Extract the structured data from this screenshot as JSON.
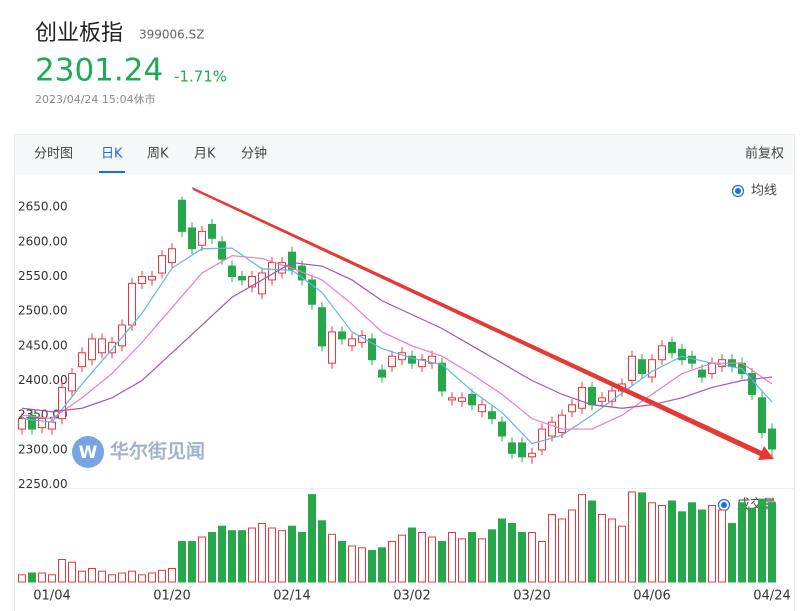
{
  "header": {
    "title": "创业板指",
    "code": "399006.SZ",
    "price": "2301.24",
    "change": "-1.71%",
    "time": "2023/04/24 15:04休市"
  },
  "tabs": [
    "分时图",
    "日K",
    "周K",
    "月K",
    "分钟"
  ],
  "adjust": "前复权",
  "watermark": "华尔街见闻",
  "chart_data": {
    "type": "candlestick",
    "categories": [
      null,
      null,
      null,
      "01/04",
      null,
      null,
      null,
      null,
      null,
      null,
      null,
      null,
      null,
      null,
      null,
      "01/20",
      null,
      null,
      null,
      null,
      null,
      null,
      null,
      null,
      null,
      null,
      null,
      "02/14",
      null,
      null,
      null,
      null,
      null,
      null,
      null,
      null,
      null,
      null,
      null,
      "03/02",
      null,
      null,
      null,
      null,
      null,
      null,
      null,
      null,
      null,
      null,
      null,
      "03/20",
      null,
      null,
      null,
      null,
      null,
      null,
      null,
      null,
      null,
      null,
      null,
      "04/06",
      null,
      null,
      null,
      null,
      null,
      null,
      null,
      null,
      null,
      null,
      null,
      "04/24"
    ],
    "open": [
      2330,
      2350,
      2332,
      2330,
      2345,
      2385,
      2420,
      2430,
      2440,
      2440,
      2450,
      2480,
      2540,
      2545,
      2555,
      2570,
      2660,
      2620,
      2595,
      2625,
      2600,
      2565,
      2550,
      2535,
      2525,
      2545,
      2555,
      2585,
      2565,
      2545,
      2505,
      2425,
      2470,
      2450,
      2455,
      2460,
      2415,
      2420,
      2430,
      2435,
      2420,
      2425,
      2425,
      2372,
      2370,
      2380,
      2355,
      2355,
      2340,
      2310,
      2310,
      2290,
      2300,
      2320,
      2325,
      2355,
      2360,
      2390,
      2370,
      2370,
      2385,
      2400,
      2430,
      2405,
      2430,
      2455,
      2445,
      2435,
      2415,
      2410,
      2420,
      2430,
      2425,
      2410,
      2375,
      2330
    ],
    "high": [
      2353,
      2358,
      2353,
      2348,
      2398,
      2418,
      2448,
      2468,
      2468,
      2463,
      2488,
      2548,
      2558,
      2558,
      2588,
      2598,
      2665,
      2628,
      2623,
      2633,
      2608,
      2573,
      2558,
      2558,
      2563,
      2578,
      2578,
      2593,
      2573,
      2553,
      2513,
      2478,
      2478,
      2468,
      2473,
      2468,
      2423,
      2443,
      2448,
      2443,
      2438,
      2443,
      2433,
      2383,
      2383,
      2388,
      2373,
      2363,
      2348,
      2318,
      2318,
      2303,
      2338,
      2348,
      2358,
      2373,
      2398,
      2398,
      2383,
      2393,
      2403,
      2443,
      2438,
      2438,
      2458,
      2463,
      2453,
      2443,
      2423,
      2433,
      2438,
      2438,
      2433,
      2418,
      2383,
      2338
    ],
    "low": [
      2322,
      2322,
      2324,
      2322,
      2337,
      2377,
      2412,
      2422,
      2432,
      2432,
      2442,
      2472,
      2532,
      2537,
      2547,
      2562,
      2607,
      2582,
      2587,
      2597,
      2567,
      2542,
      2537,
      2527,
      2517,
      2537,
      2547,
      2552,
      2537,
      2502,
      2442,
      2417,
      2452,
      2442,
      2447,
      2422,
      2397,
      2412,
      2422,
      2417,
      2412,
      2417,
      2377,
      2364,
      2362,
      2357,
      2347,
      2337,
      2312,
      2287,
      2282,
      2280,
      2292,
      2312,
      2317,
      2347,
      2352,
      2357,
      2362,
      2362,
      2377,
      2392,
      2402,
      2397,
      2422,
      2432,
      2422,
      2417,
      2397,
      2402,
      2412,
      2412,
      2402,
      2372,
      2317,
      2290
    ],
    "close": [
      2345,
      2330,
      2345,
      2340,
      2390,
      2410,
      2440,
      2460,
      2460,
      2455,
      2480,
      2540,
      2550,
      2550,
      2580,
      2590,
      2615,
      2590,
      2615,
      2605,
      2575,
      2550,
      2545,
      2550,
      2555,
      2570,
      2570,
      2560,
      2545,
      2510,
      2450,
      2470,
      2460,
      2460,
      2465,
      2430,
      2405,
      2435,
      2440,
      2425,
      2430,
      2435,
      2385,
      2375,
      2375,
      2365,
      2365,
      2345,
      2320,
      2295,
      2290,
      2295,
      2330,
      2340,
      2350,
      2365,
      2390,
      2365,
      2375,
      2385,
      2395,
      2435,
      2410,
      2430,
      2450,
      2440,
      2430,
      2425,
      2405,
      2425,
      2430,
      2420,
      2410,
      2380,
      2325,
      2301.24
    ],
    "volume": [
      8,
      10,
      10,
      8,
      25,
      22,
      12,
      15,
      12,
      8,
      10,
      12,
      8,
      10,
      13,
      15,
      45,
      45,
      50,
      55,
      62,
      57,
      57,
      60,
      65,
      60,
      57,
      62,
      55,
      97,
      68,
      53,
      45,
      40,
      38,
      35,
      38,
      45,
      52,
      60,
      55,
      50,
      45,
      55,
      48,
      55,
      48,
      58,
      70,
      65,
      55,
      55,
      45,
      75,
      70,
      80,
      97,
      90,
      75,
      70,
      62,
      100,
      99,
      88,
      85,
      90,
      78,
      88,
      80,
      85,
      80,
      65,
      88,
      82,
      92,
      88
    ],
    "volume_lim": [
      0,
      100
    ],
    "ylim": [
      2245,
      2692
    ],
    "yticks": [
      {
        "value": 2250,
        "label": "2250.00"
      },
      {
        "value": 2300,
        "label": "2300.00"
      },
      {
        "value": 2350,
        "label": "2350.00"
      },
      {
        "value": 2400,
        "label": "2400.00"
      },
      {
        "value": 2450,
        "label": "2450.00"
      },
      {
        "value": 2500,
        "label": "2500.00"
      },
      {
        "value": 2550,
        "label": "2550.00"
      },
      {
        "value": 2600,
        "label": "2600.00"
      },
      {
        "value": 2650,
        "label": "2650.00"
      }
    ],
    "up_color": "#e8383d",
    "down_color": "#26a84a",
    "ma_legend": "均线",
    "volume_legend": "成交量",
    "moving_averages": [
      {
        "color": "#5bb8e8",
        "x": [
          0,
          3,
          6,
          9,
          12,
          15,
          18,
          21,
          24,
          27,
          30,
          33,
          36,
          39,
          42,
          45,
          48,
          51,
          54,
          57,
          60,
          63,
          66,
          69,
          72,
          75
        ],
        "values": [
          2345,
          2340,
          2395,
          2445,
          2497,
          2562,
          2590,
          2591,
          2561,
          2559,
          2527,
          2470,
          2446,
          2432,
          2423,
          2385,
          2354,
          2309,
          2321,
          2350,
          2382,
          2413,
          2435,
          2425,
          2417,
          2369
        ]
      },
      {
        "color": "#f07ac8",
        "x": [
          0,
          3,
          6,
          9,
          12,
          15,
          18,
          21,
          24,
          27,
          30,
          33,
          36,
          39,
          42,
          45,
          48,
          51,
          54,
          57,
          60,
          63,
          66,
          69,
          72,
          75
        ],
        "values": [
          2350,
          2345,
          2375,
          2410,
          2455,
          2505,
          2555,
          2580,
          2576,
          2562,
          2545,
          2510,
          2470,
          2450,
          2435,
          2409,
          2380,
          2345,
          2330,
          2330,
          2350,
          2380,
          2410,
          2425,
          2425,
          2395
        ]
      },
      {
        "color": "#9b59b6",
        "x": [
          0,
          3,
          6,
          9,
          12,
          15,
          18,
          21,
          24,
          27,
          30,
          33,
          36,
          39,
          42,
          45,
          48,
          51,
          54,
          57,
          60,
          63,
          66,
          69,
          72,
          75
        ],
        "values": [
          2360,
          2355,
          2360,
          2375,
          2400,
          2440,
          2480,
          2520,
          2545,
          2570,
          2565,
          2545,
          2515,
          2495,
          2475,
          2450,
          2425,
          2400,
          2380,
          2365,
          2360,
          2365,
          2375,
          2390,
          2400,
          2405
        ]
      }
    ]
  }
}
